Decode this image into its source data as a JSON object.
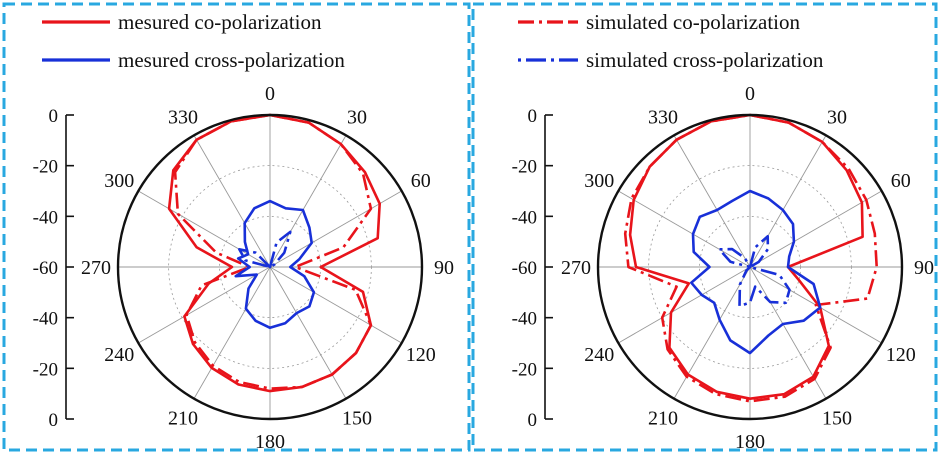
{
  "colors": {
    "frame": "#29a8e0",
    "co": "#e8141b",
    "cross": "#1830d8"
  },
  "chart_data": [
    {
      "type": "polar-line",
      "r_ticks": [
        "0",
        "-20",
        "-40",
        "-60",
        "-40",
        "-20",
        "0"
      ],
      "angle_labels": [
        "0",
        "30",
        "60",
        "90",
        "120",
        "150",
        "180",
        "210",
        "240",
        "270",
        "300",
        "330"
      ],
      "rlim": [
        -60,
        0
      ],
      "angle_step": 30,
      "legend": {
        "position": "top",
        "entries": [
          "mesured co-polarization",
          "mesured cross-polarization"
        ]
      },
      "series": [
        {
          "name": "mesured co-polarization",
          "color": "#e8141b",
          "style": "solid",
          "angles": [
            0,
            15,
            30,
            45,
            60,
            75,
            90,
            105,
            120,
            135,
            150,
            165,
            180,
            195,
            210,
            225,
            240,
            255,
            270,
            285,
            300,
            315,
            330,
            345
          ],
          "values": [
            0,
            -1,
            -4,
            -7,
            -10,
            -16,
            -40,
            -22,
            -14,
            -12,
            -11,
            -11,
            -11,
            -12,
            -14,
            -17,
            -21,
            -35,
            -45,
            -30,
            -14,
            -6,
            -2,
            -0.5
          ]
        },
        {
          "name": "",
          "color": "#e8141b",
          "style": "dashdot",
          "angles": [
            0,
            15,
            30,
            45,
            60,
            75,
            90,
            105,
            120,
            135,
            150,
            165,
            180,
            195,
            210,
            225,
            240,
            255,
            270,
            285,
            300,
            315,
            330,
            345
          ],
          "values": [
            0,
            -1,
            -4,
            -8,
            -14,
            -30,
            -50,
            -25,
            -14,
            -12,
            -11,
            -11,
            -12,
            -13,
            -15,
            -18,
            -22,
            -32,
            -52,
            -38,
            -18,
            -7,
            -2,
            -0.5
          ]
        },
        {
          "name": "mesured cross-polarization",
          "color": "#1830d8",
          "style": "solid",
          "angles": [
            0,
            15,
            30,
            45,
            60,
            75,
            90,
            105,
            120,
            135,
            150,
            165,
            180,
            195,
            210,
            225,
            240,
            255,
            270,
            285,
            300,
            315,
            330,
            345
          ],
          "values": [
            -34,
            -36,
            -34,
            -38,
            -41,
            -48,
            -52,
            -46,
            -40,
            -38,
            -39,
            -37,
            -36,
            -38,
            -41,
            -48,
            -54,
            -46,
            -52,
            -47,
            -50,
            -46,
            -40,
            -36
          ]
        },
        {
          "name": "",
          "color": "#1830d8",
          "style": "dashdot",
          "angles": [
            0,
            15,
            30,
            45,
            60,
            75,
            90,
            105,
            120,
            135,
            150,
            165,
            180,
            195,
            210,
            225,
            240,
            255,
            270,
            285,
            300,
            315,
            330,
            345
          ],
          "values": [
            -60,
            -50,
            -44,
            -52,
            -58,
            -60,
            -60,
            -60,
            -60,
            -60,
            -60,
            -60,
            -60,
            -60,
            -60,
            -60,
            -60,
            -60,
            -60,
            -50,
            -46,
            -52,
            -60,
            -60
          ]
        }
      ]
    },
    {
      "type": "polar-line",
      "r_ticks": [
        "0",
        "-20",
        "-40",
        "-60",
        "-40",
        "-20",
        "0"
      ],
      "angle_labels": [
        "0",
        "30",
        "60",
        "90",
        "120",
        "150",
        "180",
        "210",
        "240",
        "270",
        "300",
        "330"
      ],
      "rlim": [
        -60,
        0
      ],
      "angle_step": 30,
      "legend": {
        "position": "top",
        "entries": [
          "simulated co-polarization",
          "simulated cross-polarization"
        ]
      },
      "series": [
        {
          "name": "simulated co-polarization",
          "color": "#e8141b",
          "style": "dashdot",
          "angles": [
            0,
            15,
            30,
            45,
            60,
            75,
            90,
            105,
            120,
            135,
            150,
            165,
            180,
            195,
            210,
            225,
            240,
            255,
            270,
            285,
            300,
            315,
            330,
            345
          ],
          "values": [
            0,
            -1,
            -3,
            -5,
            -7,
            -9,
            -10,
            -12,
            -30,
            -15,
            -9,
            -7,
            -7,
            -8,
            -10,
            -14,
            -20,
            -30,
            -12,
            -9,
            -6,
            -4,
            -2,
            -0.5
          ]
        },
        {
          "name": "",
          "color": "#e8141b",
          "style": "solid",
          "angles": [
            0,
            15,
            30,
            45,
            60,
            75,
            90,
            105,
            120,
            135,
            150,
            165,
            180,
            195,
            210,
            225,
            240,
            255,
            270,
            285,
            300,
            315,
            330,
            345
          ],
          "values": [
            0,
            -1,
            -3,
            -6,
            -9,
            -14,
            -45,
            -40,
            -28,
            -16,
            -10,
            -8,
            -8,
            -9,
            -11,
            -15,
            -24,
            -35,
            -15,
            -11,
            -7,
            -4,
            -2,
            -0.5
          ]
        },
        {
          "name": "simulated cross-polarization",
          "color": "#1830d8",
          "style": "dashdot",
          "angles": [
            0,
            15,
            30,
            45,
            60,
            75,
            90,
            105,
            120,
            135,
            150,
            165,
            180,
            195,
            210,
            225,
            240,
            255,
            270,
            285,
            300,
            315,
            330,
            345
          ],
          "values": [
            -60,
            -52,
            -46,
            -50,
            -56,
            -60,
            -60,
            -48,
            -42,
            -40,
            -44,
            -52,
            -46,
            -44,
            -52,
            -58,
            -60,
            -60,
            -60,
            -52,
            -46,
            -50,
            -56,
            -60
          ]
        },
        {
          "name": "",
          "color": "#1830d8",
          "style": "solid",
          "angles": [
            0,
            15,
            30,
            45,
            60,
            75,
            90,
            105,
            120,
            135,
            150,
            165,
            180,
            195,
            210,
            225,
            240,
            255,
            270,
            285,
            300,
            315,
            330,
            345
          ],
          "values": [
            -30,
            -32,
            -34,
            -36,
            -40,
            -44,
            -45,
            -34,
            -28,
            -30,
            -34,
            -32,
            -26,
            -30,
            -36,
            -40,
            -38,
            -36,
            -44,
            -37,
            -34,
            -32,
            -34,
            -33
          ]
        }
      ]
    }
  ]
}
